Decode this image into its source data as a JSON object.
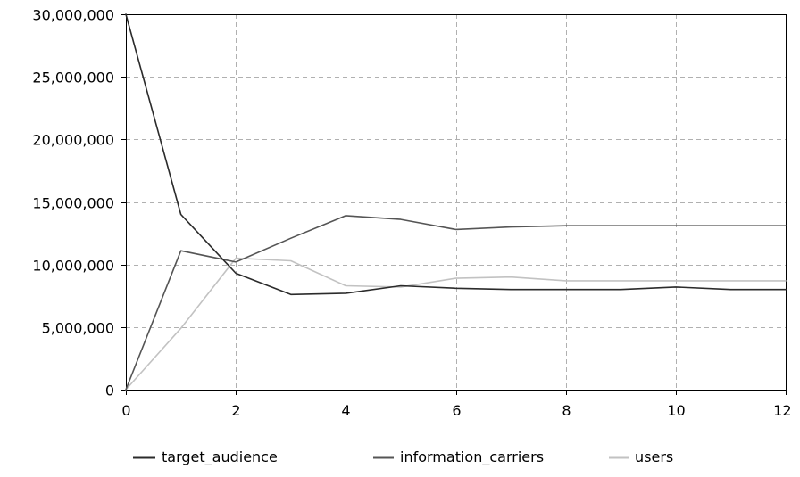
{
  "chart_data": {
    "type": "line",
    "title": "",
    "xlabel": "",
    "ylabel": "",
    "xlim": [
      0,
      12
    ],
    "ylim": [
      0,
      30000000
    ],
    "x_ticks": [
      0,
      2,
      4,
      6,
      8,
      10,
      12
    ],
    "x_tick_labels": [
      "0",
      "2",
      "4",
      "6",
      "8",
      "10",
      "12"
    ],
    "y_ticks": [
      0,
      5000000,
      10000000,
      15000000,
      20000000,
      25000000,
      30000000
    ],
    "y_tick_labels": [
      "0",
      "5,000,000",
      "10,000,000",
      "15,000,000",
      "20,000,000",
      "25,000,000",
      "30,000,000"
    ],
    "grid": true,
    "legend_position": "bottom",
    "x": [
      0,
      1,
      2,
      3,
      4,
      5,
      6,
      7,
      8,
      9,
      10,
      11,
      12
    ],
    "series": [
      {
        "name": "target_audience",
        "color": "#2b2b2b",
        "values": [
          30000000,
          14000000,
          9300000,
          7600000,
          7700000,
          8300000,
          8100000,
          8000000,
          8000000,
          8000000,
          8200000,
          8000000,
          8000000
        ]
      },
      {
        "name": "information_carriers",
        "color": "#555555",
        "values": [
          0,
          11100000,
          10200000,
          12100000,
          13900000,
          13600000,
          12800000,
          13000000,
          13100000,
          13100000,
          13100000,
          13100000,
          13100000
        ]
      },
      {
        "name": "users",
        "color": "#c2c2c2",
        "values": [
          0,
          4900000,
          10500000,
          10300000,
          8300000,
          8200000,
          8900000,
          9000000,
          8700000,
          8700000,
          8700000,
          8700000,
          8700000
        ]
      }
    ]
  }
}
